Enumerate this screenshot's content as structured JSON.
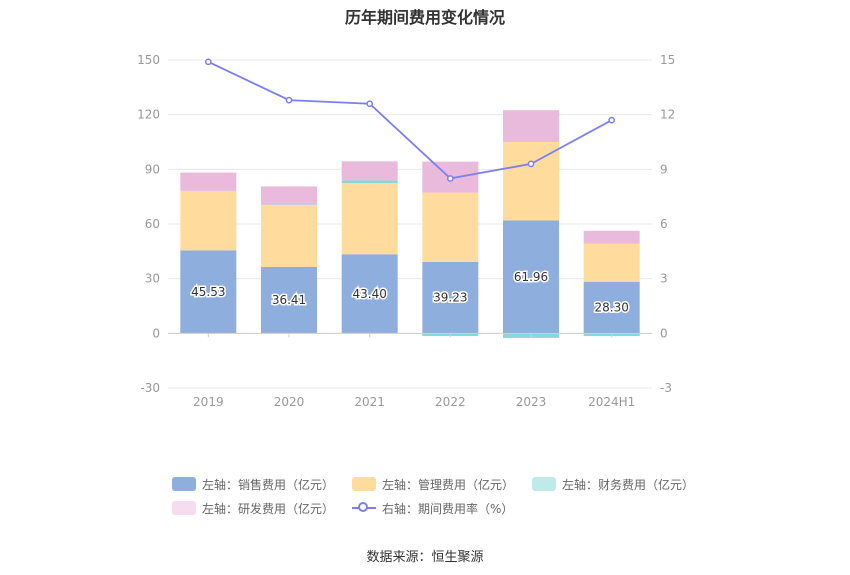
{
  "title": "历年期间费用变化情况",
  "source": "数据来源：恒生聚源",
  "colors": {
    "sales": "#8eaedd",
    "admin": "#ffdb9e",
    "finance": "#88d8d8",
    "rnd": "#e9badc",
    "rate": "#7b7ff0",
    "grid": "#e8e8e8",
    "axis_text": "#999999"
  },
  "legend": [
    {
      "label": "左轴：销售费用（亿元）",
      "key": "sales",
      "kind": "bar"
    },
    {
      "label": "左轴：管理费用（亿元）",
      "key": "admin",
      "kind": "bar"
    },
    {
      "label": "左轴：财务费用（亿元）",
      "key": "finance",
      "kind": "bar"
    },
    {
      "label": "左轴：研发费用（亿元）",
      "key": "rnd",
      "kind": "bar"
    },
    {
      "label": "右轴：期间费用率（%）",
      "key": "rate",
      "kind": "line"
    }
  ],
  "chart_data": {
    "type": "bar",
    "stacked": true,
    "categories": [
      "2019",
      "2020",
      "2021",
      "2022",
      "2023",
      "2024H1"
    ],
    "series": [
      {
        "name": "左轴：销售费用（亿元）",
        "key": "sales",
        "axis": "left",
        "values": [
          45.53,
          36.41,
          43.4,
          39.23,
          61.96,
          28.3
        ],
        "labels": [
          "45.53",
          "36.41",
          "43.40",
          "39.23",
          "61.96",
          "28.30"
        ]
      },
      {
        "name": "左轴：管理费用（亿元）",
        "key": "admin",
        "axis": "left",
        "values": [
          32.5,
          34.0,
          39.0,
          38.0,
          43.0,
          21.0
        ]
      },
      {
        "name": "左轴：财务费用（亿元）",
        "key": "finance",
        "axis": "left",
        "values": [
          0.2,
          0.2,
          1.5,
          -1.5,
          -2.5,
          -1.5
        ]
      },
      {
        "name": "左轴：研发费用（亿元）",
        "key": "rnd",
        "axis": "left",
        "values": [
          10.0,
          10.0,
          10.5,
          17.0,
          17.5,
          7.0
        ]
      },
      {
        "name": "右轴：期间费用率（%）",
        "key": "rate",
        "axis": "right",
        "type": "line",
        "values": [
          14.9,
          12.8,
          12.6,
          8.5,
          9.3,
          11.7
        ]
      }
    ],
    "ylim_left": [
      -30,
      150
    ],
    "yticks_left": [
      "-30",
      "0",
      "30",
      "60",
      "90",
      "120",
      "150"
    ],
    "ylim_right": [
      -3,
      15
    ],
    "yticks_right": [
      "-3",
      "0",
      "3",
      "6",
      "9",
      "12",
      "15"
    ],
    "grid": true,
    "legend_position": "bottom"
  }
}
